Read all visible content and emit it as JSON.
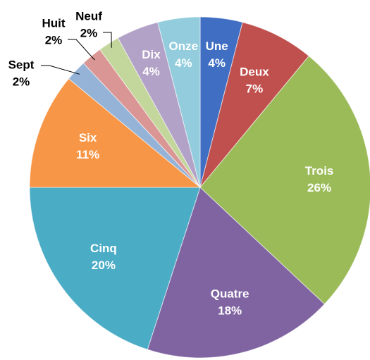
{
  "chart_data": {
    "type": "pie",
    "categories": [
      "Une",
      "Deux",
      "Trois",
      "Quatre",
      "Cinq",
      "Six",
      "Sept",
      "Huit",
      "Neuf",
      "Dix",
      "Onze"
    ],
    "values": [
      4,
      7,
      26,
      18,
      20,
      11,
      2,
      2,
      2,
      4,
      4
    ],
    "value_labels": [
      "4%",
      "7%",
      "26%",
      "18%",
      "20%",
      "11%",
      "2%",
      "2%",
      "2%",
      "4%",
      "4%"
    ],
    "colors": [
      "#3f6ec3",
      "#c0504d",
      "#9bbb59",
      "#8064a2",
      "#4bacc6",
      "#f79646",
      "#95b3d7",
      "#d99694",
      "#c3d69b",
      "#b3a2c7",
      "#93cddd"
    ]
  }
}
